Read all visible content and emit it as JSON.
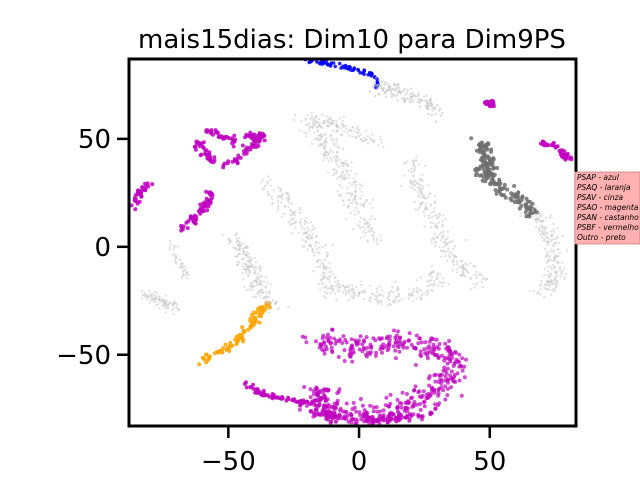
{
  "chart_data": {
    "type": "scatter",
    "title": "mais15dias: Dim10 para Dim9PS",
    "xlabel": "",
    "ylabel": "",
    "xlim": [
      -88,
      83
    ],
    "ylim": [
      -83,
      87
    ],
    "x_ticks": [
      -50,
      0,
      50
    ],
    "y_ticks": [
      50,
      0,
      -50
    ],
    "x_tick_labels": [
      "−50",
      "0",
      "50"
    ],
    "y_tick_labels": [
      "50",
      "0",
      "−50"
    ],
    "grid": false,
    "legend_placement": "right",
    "legend": [
      {
        "label": "PSAP - azul",
        "color": "#0000ff"
      },
      {
        "label": "PSAQ - laranja",
        "color": "#ffa500"
      },
      {
        "label": "PSAV - cinza",
        "color": "#808080"
      },
      {
        "label": "PSAO - magenta",
        "color": "#bf00bf"
      },
      {
        "label": "PSAN - castanho",
        "color": "#8b4513"
      },
      {
        "label": "PSBF - vermelho",
        "color": "#ff0000"
      },
      {
        "label": "Outro - preto",
        "color": "#000000"
      }
    ],
    "legend_background": "#ffb0b0",
    "clusters": [
      {
        "name": "blue-arc",
        "color": "#0000ff",
        "opacity": 0.85,
        "r": 1.8,
        "n": 60,
        "width": 1.3,
        "path": [
          [
            -22,
            87
          ],
          [
            -10,
            84.5
          ],
          [
            0,
            82
          ],
          [
            5,
            80
          ],
          [
            6,
            77
          ],
          [
            7,
            73
          ]
        ]
      },
      {
        "name": "orange-arc",
        "color": "#ffa500",
        "opacity": 0.85,
        "r": 2.0,
        "n": 90,
        "width": 2.0,
        "path": [
          [
            -60,
            -52
          ],
          [
            -55,
            -49
          ],
          [
            -49,
            -46
          ],
          [
            -44,
            -40
          ],
          [
            -40,
            -34
          ],
          [
            -37,
            -29
          ],
          [
            -34,
            -27
          ]
        ]
      },
      {
        "name": "magenta-bottom-hook",
        "color": "#bf00bf",
        "opacity": 0.7,
        "r": 2.0,
        "n": 500,
        "width": 6,
        "path": [
          [
            -17,
            -45
          ],
          [
            -2,
            -46
          ],
          [
            12,
            -45
          ],
          [
            26,
            -46
          ],
          [
            35,
            -50
          ],
          [
            36,
            -58
          ],
          [
            30,
            -67
          ],
          [
            20,
            -74
          ],
          [
            8,
            -78
          ],
          [
            -5,
            -78
          ],
          [
            -15,
            -75
          ],
          [
            -17,
            -69
          ],
          [
            -12,
            -66
          ]
        ]
      },
      {
        "name": "magenta-bottom-left",
        "color": "#bf00bf",
        "opacity": 0.85,
        "r": 2.0,
        "n": 60,
        "width": 1.4,
        "path": [
          [
            -43,
            -63
          ],
          [
            -38,
            -68
          ],
          [
            -30,
            -70
          ],
          [
            -20,
            -72
          ]
        ]
      },
      {
        "name": "magenta-bottom-stub",
        "color": "#bf00bf",
        "opacity": 0.85,
        "r": 2.0,
        "n": 30,
        "width": 2.0,
        "path": [
          [
            -18,
            -77
          ],
          [
            -12,
            -77
          ],
          [
            -8,
            -80
          ]
        ]
      },
      {
        "name": "magenta-bottom-right",
        "color": "#bf00bf",
        "opacity": 0.85,
        "r": 2.0,
        "n": 40,
        "width": 2.0,
        "path": [
          [
            2,
            -80
          ],
          [
            10,
            -80
          ],
          [
            20,
            -79
          ],
          [
            28,
            -77
          ]
        ]
      },
      {
        "name": "magenta-left-arc",
        "color": "#bf00bf",
        "opacity": 0.85,
        "r": 2.0,
        "n": 60,
        "width": 2.0,
        "path": [
          [
            -68,
            8
          ],
          [
            -64,
            12
          ],
          [
            -61,
            16
          ],
          [
            -58,
            21
          ],
          [
            -56,
            26
          ]
        ]
      },
      {
        "name": "magenta-left-edge",
        "color": "#bf00bf",
        "opacity": 0.85,
        "r": 2.0,
        "n": 30,
        "width": 1.5,
        "path": [
          [
            -85,
            20
          ],
          [
            -84,
            25
          ],
          [
            -82,
            28
          ],
          [
            -79,
            29
          ]
        ]
      },
      {
        "name": "magenta-top-left-1",
        "color": "#bf00bf",
        "opacity": 0.85,
        "r": 2.0,
        "n": 35,
        "width": 2.0,
        "path": [
          [
            -63,
            49
          ],
          [
            -60,
            46
          ],
          [
            -58,
            42
          ],
          [
            -56,
            40
          ]
        ]
      },
      {
        "name": "magenta-top-left-2",
        "color": "#bf00bf",
        "opacity": 0.85,
        "r": 2.0,
        "n": 35,
        "width": 1.5,
        "path": [
          [
            -58,
            54
          ],
          [
            -55,
            52
          ],
          [
            -50,
            50
          ],
          [
            -47,
            48
          ]
        ]
      },
      {
        "name": "magenta-top-left-3",
        "color": "#bf00bf",
        "opacity": 0.85,
        "r": 2.0,
        "n": 50,
        "width": 1.8,
        "path": [
          [
            -52,
            38
          ],
          [
            -48,
            40
          ],
          [
            -44,
            43
          ],
          [
            -40,
            48
          ],
          [
            -37,
            52
          ]
        ]
      },
      {
        "name": "magenta-top-left-4",
        "color": "#bf00bf",
        "opacity": 0.85,
        "r": 2.0,
        "n": 25,
        "width": 1.5,
        "path": [
          [
            -43,
            52
          ],
          [
            -40,
            50
          ],
          [
            -37,
            51
          ]
        ]
      },
      {
        "name": "magenta-top-right",
        "color": "#bf00bf",
        "opacity": 0.85,
        "r": 2.0,
        "n": 30,
        "width": 1.5,
        "path": [
          [
            49,
            67
          ],
          [
            50,
            66
          ],
          [
            51,
            66
          ]
        ]
      },
      {
        "name": "magenta-right-edge",
        "color": "#bf00bf",
        "opacity": 0.85,
        "r": 2.0,
        "n": 40,
        "width": 1.5,
        "path": [
          [
            70,
            48
          ],
          [
            74,
            47
          ],
          [
            78,
            43
          ],
          [
            81,
            40
          ]
        ]
      },
      {
        "name": "gray-dark-cluster",
        "color": "#6e6e6e",
        "opacity": 0.85,
        "r": 2.0,
        "n": 180,
        "width": 3.2,
        "path": [
          [
            47,
            48
          ],
          [
            48,
            42
          ],
          [
            49,
            34
          ],
          [
            53,
            28
          ],
          [
            57,
            25
          ],
          [
            60,
            23
          ],
          [
            64,
            18
          ],
          [
            67,
            15
          ]
        ]
      },
      {
        "name": "gray-light-top",
        "color": "#bdbdbd",
        "opacity": 0.55,
        "r": 1.2,
        "n": 130,
        "width": 3.5,
        "path": [
          [
            5,
            75
          ],
          [
            15,
            72
          ],
          [
            25,
            67
          ],
          [
            30,
            62
          ]
        ]
      },
      {
        "name": "gray-light-band-1",
        "color": "#c8c8c8",
        "opacity": 0.55,
        "r": 1.2,
        "n": 260,
        "width": 5,
        "path": [
          [
            -20,
            60
          ],
          [
            -14,
            50
          ],
          [
            -8,
            40
          ],
          [
            -3,
            28
          ],
          [
            2,
            14
          ],
          [
            5,
            5
          ]
        ]
      },
      {
        "name": "gray-light-band-2",
        "color": "#c8c8c8",
        "opacity": 0.55,
        "r": 1.2,
        "n": 200,
        "width": 4,
        "path": [
          [
            -35,
            28
          ],
          [
            -28,
            20
          ],
          [
            -22,
            10
          ],
          [
            -17,
            0
          ],
          [
            -13,
            -12
          ],
          [
            -12,
            -22
          ]
        ]
      },
      {
        "name": "gray-light-band-3",
        "color": "#c8c8c8",
        "opacity": 0.55,
        "r": 1.2,
        "n": 190,
        "width": 4,
        "path": [
          [
            -48,
            4
          ],
          [
            -44,
            -5
          ],
          [
            -40,
            -14
          ],
          [
            -36,
            -22
          ],
          [
            -33,
            -28
          ]
        ]
      },
      {
        "name": "gray-light-band-4",
        "color": "#c8c8c8",
        "opacity": 0.55,
        "r": 1.2,
        "n": 230,
        "width": 4,
        "path": [
          [
            20,
            40
          ],
          [
            23,
            28
          ],
          [
            27,
            16
          ],
          [
            31,
            5
          ],
          [
            36,
            -5
          ],
          [
            42,
            -13
          ],
          [
            48,
            -17
          ]
        ]
      },
      {
        "name": "gray-light-band-5",
        "color": "#c8c8c8",
        "opacity": 0.55,
        "r": 1.2,
        "n": 170,
        "width": 4,
        "path": [
          [
            -10,
            -18
          ],
          [
            3,
            -22
          ],
          [
            16,
            -23
          ],
          [
            25,
            -20
          ],
          [
            30,
            -16
          ],
          [
            28,
            -11
          ]
        ]
      },
      {
        "name": "gray-light-band-6",
        "color": "#c8c8c8",
        "opacity": 0.55,
        "r": 1.2,
        "n": 190,
        "width": 4,
        "path": [
          [
            67,
            15
          ],
          [
            71,
            8
          ],
          [
            74,
            0
          ],
          [
            75,
            -10
          ],
          [
            73,
            -18
          ],
          [
            70,
            -21
          ]
        ]
      },
      {
        "name": "gray-light-left",
        "color": "#c8c8c8",
        "opacity": 0.55,
        "r": 1.2,
        "n": 80,
        "width": 2.5,
        "path": [
          [
            -82,
            -22
          ],
          [
            -76,
            -25
          ],
          [
            -70,
            -28
          ]
        ]
      },
      {
        "name": "gray-light-top-left",
        "color": "#c8c8c8",
        "opacity": 0.55,
        "r": 1.2,
        "n": 40,
        "width": 2,
        "path": [
          [
            -72,
            2
          ],
          [
            -70,
            -5
          ],
          [
            -66,
            -14
          ]
        ]
      },
      {
        "name": "gray-light-top-2",
        "color": "#c8c8c8",
        "opacity": 0.55,
        "r": 1.2,
        "n": 100,
        "width": 3,
        "path": [
          [
            -20,
            60
          ],
          [
            -10,
            57
          ],
          [
            0,
            52
          ],
          [
            8,
            48
          ]
        ]
      }
    ]
  }
}
